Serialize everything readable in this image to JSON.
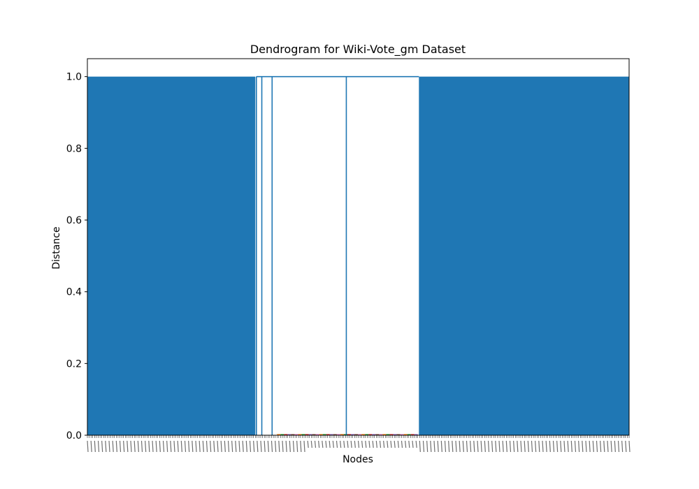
{
  "chart_data": {
    "type": "dendrogram",
    "title": "Dendrogram for Wiki-Vote_gm Dataset",
    "xlabel": "Nodes",
    "ylabel": "Distance",
    "ylim": [
      0,
      1.05
    ],
    "yticks": [
      0.0,
      0.2,
      0.4,
      0.6,
      0.8,
      1.0
    ],
    "ytick_labels": [
      "0.0",
      "0.2",
      "0.4",
      "0.6",
      "0.8",
      "1.0"
    ],
    "grid": false,
    "legend": "none",
    "link_color": "#1f77b4",
    "leaf_link_colors": [
      "#ff7f0e",
      "#2ca02c",
      "#d62728",
      "#9467bd",
      "#8c564b",
      "#e377c2"
    ],
    "max_merge_distance": 1.0,
    "clusters": [
      {
        "name": "left dense block",
        "leaf_start_fraction": 0.0,
        "leaf_end_fraction": 0.31,
        "merge_distance": 1.0,
        "dense": true
      },
      {
        "name": "single node",
        "leaf_position_fraction": 0.312,
        "merge_distance": 1.0
      },
      {
        "name": "single node",
        "leaf_position_fraction": 0.322,
        "merge_distance": 1.0
      },
      {
        "name": "single node",
        "leaf_position_fraction": 0.341,
        "merge_distance": 1.0
      },
      {
        "name": "middle group",
        "leaf_start_fraction": 0.35,
        "leaf_end_fraction": 0.61,
        "link_position_fraction": 0.478,
        "merge_distance": 1.0
      },
      {
        "name": "right dense block",
        "leaf_start_fraction": 0.612,
        "leaf_end_fraction": 1.0,
        "merge_distance": 1.0,
        "dense": true
      }
    ],
    "top_link_distance": 1.0
  }
}
